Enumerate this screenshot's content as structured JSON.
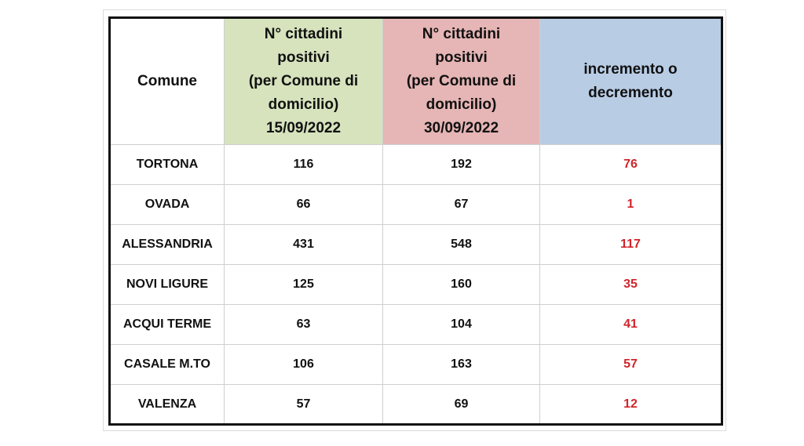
{
  "table": {
    "headers": {
      "comune": "Comune",
      "first": [
        "N° cittadini",
        "positivi",
        "(per Comune di",
        "domicilio)",
        "15/09/2022"
      ],
      "second": [
        "N° cittadini",
        "positivi",
        "(per Comune di",
        "domicilio)",
        "30/09/2022"
      ],
      "delta": [
        "incremento o",
        "decremento"
      ]
    },
    "rows": [
      {
        "comune": "TORTONA",
        "first": "116",
        "second": "192",
        "delta": "76"
      },
      {
        "comune": "OVADA",
        "first": "66",
        "second": "67",
        "delta": "1"
      },
      {
        "comune": "ALESSANDRIA",
        "first": "431",
        "second": "548",
        "delta": "117"
      },
      {
        "comune": "NOVI LIGURE",
        "first": "125",
        "second": "160",
        "delta": "35"
      },
      {
        "comune": "ACQUI TERME",
        "first": "63",
        "second": "104",
        "delta": "41"
      },
      {
        "comune": "CASALE M.TO",
        "first": "106",
        "second": "163",
        "delta": "57"
      },
      {
        "comune": "VALENZA",
        "first": "57",
        "second": "69",
        "delta": "12"
      }
    ],
    "colors": {
      "header_first": "#d6e3bd",
      "header_second": "#e6b5b5",
      "header_delta": "#b8cce4",
      "delta_text": "#d0252b"
    }
  }
}
